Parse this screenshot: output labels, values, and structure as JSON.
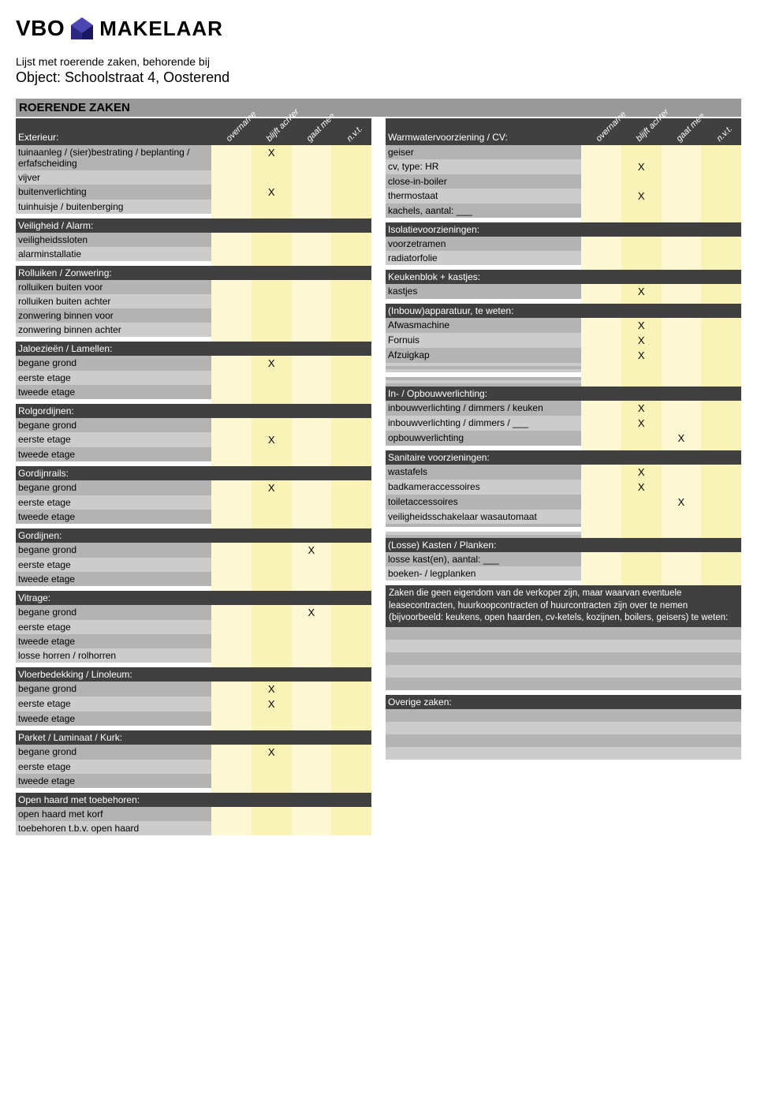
{
  "logo": {
    "vbo": "VBO",
    "makelaar": "MAKELAAR"
  },
  "header": {
    "line1": "Lijst met roerende zaken, behorende bij",
    "line2": "Object: Schoolstraat 4, Oosterend",
    "title": "ROERENDE ZAKEN"
  },
  "colHeaders": [
    "overname",
    "blijft achter",
    "gaat mee",
    "n.v.t."
  ],
  "left": [
    {
      "type": "header",
      "label": "Exterieur:"
    },
    {
      "type": "row",
      "label": "tuinaanleg / (sier)bestrating / beplanting / erfafscheiding",
      "marks": [
        "",
        "X",
        "",
        ""
      ]
    },
    {
      "type": "row",
      "label": "vijver",
      "marks": [
        "",
        "",
        "",
        ""
      ]
    },
    {
      "type": "row",
      "label": "buitenverlichting",
      "marks": [
        "",
        "X",
        "",
        ""
      ]
    },
    {
      "type": "row",
      "label": "tuinhuisje / buitenberging",
      "marks": [
        "",
        "",
        "",
        ""
      ]
    },
    {
      "type": "spacer"
    },
    {
      "type": "section",
      "label": "Veiligheid / Alarm:"
    },
    {
      "type": "row",
      "label": "veiligheidssloten",
      "marks": [
        "",
        "",
        "",
        ""
      ]
    },
    {
      "type": "row",
      "label": "alarminstallatie",
      "marks": [
        "",
        "",
        "",
        ""
      ]
    },
    {
      "type": "spacer"
    },
    {
      "type": "section",
      "label": "Rolluiken / Zonwering:"
    },
    {
      "type": "row",
      "label": "rolluiken buiten voor",
      "marks": [
        "",
        "",
        "",
        ""
      ]
    },
    {
      "type": "row",
      "label": "rolluiken buiten achter",
      "marks": [
        "",
        "",
        "",
        ""
      ]
    },
    {
      "type": "row",
      "label": "zonwering binnen voor",
      "marks": [
        "",
        "",
        "",
        ""
      ]
    },
    {
      "type": "row",
      "label": "zonwering binnen achter",
      "marks": [
        "",
        "",
        "",
        ""
      ]
    },
    {
      "type": "spacer"
    },
    {
      "type": "section",
      "label": "Jaloezieën / Lamellen:"
    },
    {
      "type": "row",
      "label": "begane grond",
      "marks": [
        "",
        "X",
        "",
        ""
      ]
    },
    {
      "type": "row",
      "label": "eerste etage",
      "marks": [
        "",
        "",
        "",
        ""
      ]
    },
    {
      "type": "row",
      "label": "tweede etage",
      "marks": [
        "",
        "",
        "",
        ""
      ]
    },
    {
      "type": "spacer"
    },
    {
      "type": "section",
      "label": "Rolgordijnen:"
    },
    {
      "type": "row",
      "label": "begane grond",
      "marks": [
        "",
        "",
        "",
        ""
      ]
    },
    {
      "type": "row",
      "label": "eerste etage",
      "marks": [
        "",
        "X",
        "",
        ""
      ]
    },
    {
      "type": "row",
      "label": "tweede etage",
      "marks": [
        "",
        "",
        "",
        ""
      ]
    },
    {
      "type": "spacer"
    },
    {
      "type": "section",
      "label": "Gordijnrails:"
    },
    {
      "type": "row",
      "label": "begane grond",
      "marks": [
        "",
        "X",
        "",
        ""
      ]
    },
    {
      "type": "row",
      "label": "eerste etage",
      "marks": [
        "",
        "",
        "",
        ""
      ]
    },
    {
      "type": "row",
      "label": "tweede etage",
      "marks": [
        "",
        "",
        "",
        ""
      ]
    },
    {
      "type": "spacer"
    },
    {
      "type": "section",
      "label": "Gordijnen:"
    },
    {
      "type": "row",
      "label": "begane grond",
      "marks": [
        "",
        "",
        "X",
        ""
      ]
    },
    {
      "type": "row",
      "label": "eerste etage",
      "marks": [
        "",
        "",
        "",
        ""
      ]
    },
    {
      "type": "row",
      "label": "tweede etage",
      "marks": [
        "",
        "",
        "",
        ""
      ]
    },
    {
      "type": "spacer"
    },
    {
      "type": "section",
      "label": "Vitrage:"
    },
    {
      "type": "row",
      "label": "begane grond",
      "marks": [
        "",
        "",
        "X",
        ""
      ]
    },
    {
      "type": "row",
      "label": "eerste etage",
      "marks": [
        "",
        "",
        "",
        ""
      ]
    },
    {
      "type": "row",
      "label": "tweede etage",
      "marks": [
        "",
        "",
        "",
        ""
      ]
    },
    {
      "type": "row",
      "label": "losse horren / rolhorren",
      "marks": [
        "",
        "",
        "",
        ""
      ]
    },
    {
      "type": "spacer"
    },
    {
      "type": "section",
      "label": "Vloerbedekking / Linoleum:"
    },
    {
      "type": "row",
      "label": "begane grond",
      "marks": [
        "",
        "X",
        "",
        ""
      ]
    },
    {
      "type": "row",
      "label": "eerste etage",
      "marks": [
        "",
        "X",
        "",
        ""
      ]
    },
    {
      "type": "row",
      "label": "tweede etage",
      "marks": [
        "",
        "",
        "",
        ""
      ]
    },
    {
      "type": "spacer"
    },
    {
      "type": "section",
      "label": "Parket / Laminaat / Kurk:"
    },
    {
      "type": "row",
      "label": "begane grond",
      "marks": [
        "",
        "X",
        "",
        ""
      ]
    },
    {
      "type": "row",
      "label": "eerste etage",
      "marks": [
        "",
        "",
        "",
        ""
      ]
    },
    {
      "type": "row",
      "label": "tweede etage",
      "marks": [
        "",
        "",
        "",
        ""
      ]
    },
    {
      "type": "spacer"
    },
    {
      "type": "section",
      "label": "Open haard met toebehoren:"
    },
    {
      "type": "row",
      "label": "open haard met korf",
      "marks": [
        "",
        "",
        "",
        ""
      ]
    },
    {
      "type": "row",
      "label": "toebehoren t.b.v. open haard",
      "marks": [
        "",
        "",
        "",
        ""
      ]
    }
  ],
  "right": [
    {
      "type": "header",
      "label": "Warmwatervoorziening / CV:"
    },
    {
      "type": "row",
      "label": "geiser",
      "marks": [
        "",
        "",
        "",
        ""
      ]
    },
    {
      "type": "row",
      "label": "cv, type: HR",
      "marks": [
        "",
        "X",
        "",
        ""
      ]
    },
    {
      "type": "row",
      "label": "close-in-boiler",
      "marks": [
        "",
        "",
        "",
        ""
      ]
    },
    {
      "type": "row",
      "label": "thermostaat",
      "marks": [
        "",
        "X",
        "",
        ""
      ]
    },
    {
      "type": "row",
      "label": "kachels, aantal: ___",
      "marks": [
        "",
        "",
        "",
        ""
      ]
    },
    {
      "type": "spacer"
    },
    {
      "type": "section",
      "label": "Isolatievoorzieningen:"
    },
    {
      "type": "row",
      "label": "voorzetramen",
      "marks": [
        "",
        "",
        "",
        ""
      ]
    },
    {
      "type": "row",
      "label": "radiatorfolie",
      "marks": [
        "",
        "",
        "",
        ""
      ]
    },
    {
      "type": "spacer"
    },
    {
      "type": "section",
      "label": "Keukenblok + kastjes:"
    },
    {
      "type": "row",
      "label": "kastjes",
      "marks": [
        "",
        "X",
        "",
        ""
      ]
    },
    {
      "type": "spacer"
    },
    {
      "type": "section",
      "label": "(Inbouw)apparatuur, te weten:"
    },
    {
      "type": "row",
      "label": "Afwasmachine",
      "marks": [
        "",
        "X",
        "",
        ""
      ]
    },
    {
      "type": "row",
      "label": "Fornuis",
      "marks": [
        "",
        "X",
        "",
        ""
      ]
    },
    {
      "type": "row",
      "label": "Afzuigkap",
      "marks": [
        "",
        "X",
        "",
        ""
      ]
    },
    {
      "type": "row",
      "label": "",
      "marks": [
        "",
        "",
        "",
        ""
      ]
    },
    {
      "type": "row",
      "label": "",
      "marks": [
        "",
        "",
        "",
        ""
      ]
    },
    {
      "type": "row",
      "label": "",
      "marks": [
        "",
        "",
        "",
        ""
      ]
    },
    {
      "type": "spacer"
    },
    {
      "type": "row",
      "label": "",
      "marks": [
        "",
        "",
        "",
        ""
      ]
    },
    {
      "type": "row",
      "label": "",
      "marks": [
        "",
        "",
        "",
        ""
      ]
    },
    {
      "type": "row",
      "label": "",
      "marks": [
        "",
        "",
        "",
        ""
      ]
    },
    {
      "type": "section",
      "label": "In- / Opbouwverlichting:"
    },
    {
      "type": "row",
      "label": "inbouwverlichting / dimmers / keuken",
      "marks": [
        "",
        "X",
        "",
        ""
      ]
    },
    {
      "type": "row",
      "label": "inbouwverlichting / dimmers / ___",
      "marks": [
        "",
        "X",
        "",
        ""
      ]
    },
    {
      "type": "row",
      "label": "opbouwverlichting",
      "marks": [
        "",
        "",
        "X",
        ""
      ]
    },
    {
      "type": "spacer"
    },
    {
      "type": "section",
      "label": "Sanitaire voorzieningen:"
    },
    {
      "type": "row",
      "label": "wastafels",
      "marks": [
        "",
        "X",
        "",
        ""
      ]
    },
    {
      "type": "row",
      "label": "badkameraccessoires",
      "marks": [
        "",
        "X",
        "",
        ""
      ]
    },
    {
      "type": "row",
      "label": "toiletaccessoires",
      "marks": [
        "",
        "",
        "X",
        ""
      ]
    },
    {
      "type": "row",
      "label": "veiligheidsschakelaar wasautomaat",
      "marks": [
        "",
        "",
        "",
        ""
      ]
    },
    {
      "type": "row",
      "label": "",
      "marks": [
        "",
        "",
        "",
        ""
      ]
    },
    {
      "type": "spacer"
    },
    {
      "type": "row",
      "label": "",
      "marks": [
        "",
        "",
        "",
        ""
      ]
    },
    {
      "type": "row",
      "label": "",
      "marks": [
        "",
        "",
        "",
        ""
      ]
    },
    {
      "type": "section",
      "label": "(Losse) Kasten / Planken:"
    },
    {
      "type": "row",
      "label": "losse kast(en), aantal: ___",
      "marks": [
        "",
        "",
        "",
        ""
      ]
    },
    {
      "type": "row",
      "label": "boeken- / legplanken",
      "marks": [
        "",
        "",
        "",
        ""
      ]
    },
    {
      "type": "spacer"
    },
    {
      "type": "note",
      "label": "Zaken die geen eigendom van de verkoper zijn, maar waarvan eventuele leasecontracten, huurkoopcontracten of huurcontracten zijn over te nemen (bijvoorbeeld: keukens, open haarden, cv-ketels, kozijnen, boilers, geisers) te weten:"
    },
    {
      "type": "grayblock"
    },
    {
      "type": "grayblock2"
    },
    {
      "type": "grayblock"
    },
    {
      "type": "grayblock2"
    },
    {
      "type": "grayblock"
    },
    {
      "type": "spacer-plain"
    },
    {
      "type": "section",
      "label": "Overige zaken:"
    },
    {
      "type": "grayblock"
    },
    {
      "type": "grayblock2"
    },
    {
      "type": "grayblock"
    },
    {
      "type": "grayblock2"
    }
  ]
}
